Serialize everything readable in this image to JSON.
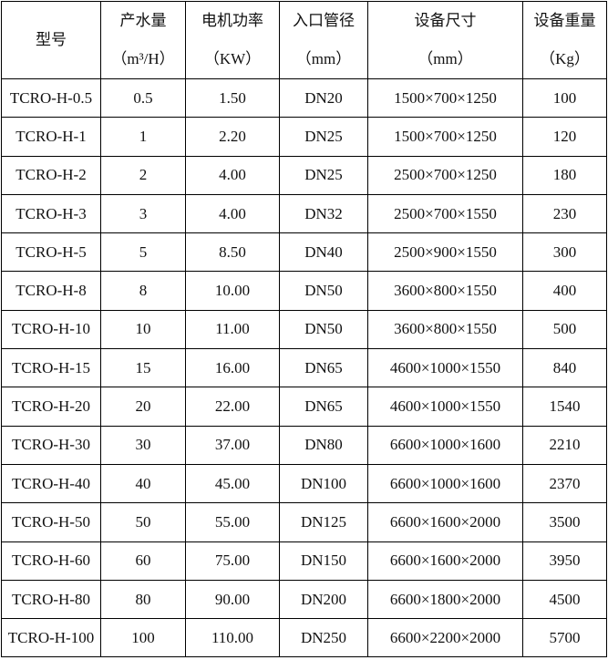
{
  "headers": [
    {
      "title": "型号",
      "unit": ""
    },
    {
      "title": "产水量",
      "unit": "（m³/H）"
    },
    {
      "title": "电机功率",
      "unit": "（KW）"
    },
    {
      "title": "入口管径",
      "unit": "（mm）"
    },
    {
      "title": "设备尺寸",
      "unit": "（mm）"
    },
    {
      "title": "设备重量",
      "unit": "（Kg）"
    }
  ],
  "rows": [
    [
      "TCRO-H-0.5",
      "0.5",
      "1.50",
      "DN20",
      "1500×700×1250",
      "100"
    ],
    [
      "TCRO-H-1",
      "1",
      "2.20",
      "DN25",
      "1500×700×1250",
      "120"
    ],
    [
      "TCRO-H-2",
      "2",
      "4.00",
      "DN25",
      "2500×700×1250",
      "180"
    ],
    [
      "TCRO-H-3",
      "3",
      "4.00",
      "DN32",
      "2500×700×1550",
      "230"
    ],
    [
      "TCRO-H-5",
      "5",
      "8.50",
      "DN40",
      "2500×900×1550",
      "300"
    ],
    [
      "TCRO-H-8",
      "8",
      "10.00",
      "DN50",
      "3600×800×1550",
      "400"
    ],
    [
      "TCRO-H-10",
      "10",
      "11.00",
      "DN50",
      "3600×800×1550",
      "500"
    ],
    [
      "TCRO-H-15",
      "15",
      "16.00",
      "DN65",
      "4600×1000×1550",
      "840"
    ],
    [
      "TCRO-H-20",
      "20",
      "22.00",
      "DN65",
      "4600×1000×1550",
      "1540"
    ],
    [
      "TCRO-H-30",
      "30",
      "37.00",
      "DN80",
      "6600×1000×1600",
      "2210"
    ],
    [
      "TCRO-H-40",
      "40",
      "45.00",
      "DN100",
      "6600×1000×1600",
      "2370"
    ],
    [
      "TCRO-H-50",
      "50",
      "55.00",
      "DN125",
      "6600×1600×2000",
      "3500"
    ],
    [
      "TCRO-H-60",
      "60",
      "75.00",
      "DN150",
      "6600×1600×2000",
      "3950"
    ],
    [
      "TCRO-H-80",
      "80",
      "90.00",
      "DN200",
      "6600×1800×2000",
      "4500"
    ],
    [
      "TCRO-H-100",
      "100",
      "110.00",
      "DN250",
      "6600×2200×2000",
      "5700"
    ]
  ]
}
